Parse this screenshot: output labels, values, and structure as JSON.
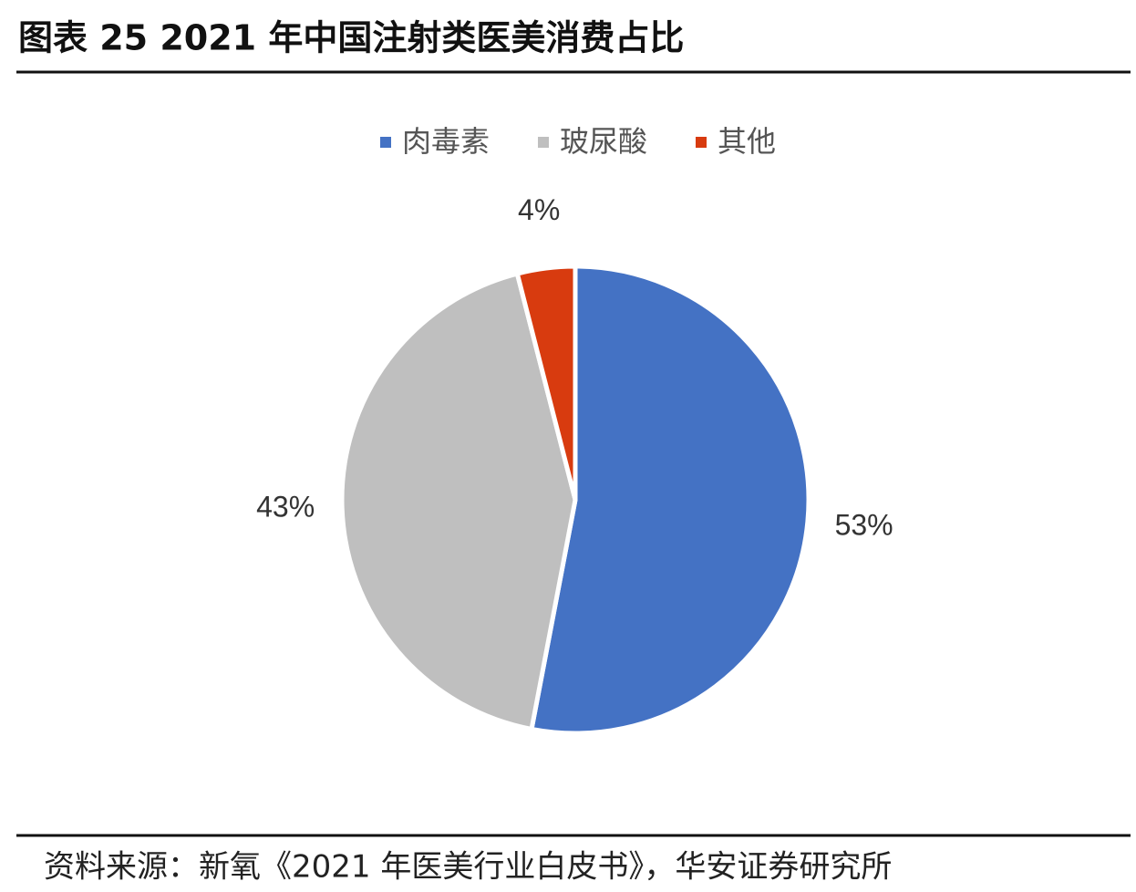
{
  "chart_data": {
    "type": "pie",
    "title": "图表 25 2021 年中国注射类医美消费占比",
    "categories": [
      "肉毒素",
      "玻尿酸",
      "其他"
    ],
    "values": [
      53,
      43,
      4
    ],
    "value_labels": [
      "53%",
      "43%",
      "4%"
    ],
    "colors": [
      "#4472c4",
      "#bfbfbf",
      "#d83b0f"
    ],
    "legend": "top"
  },
  "source": "资料来源：新氧《2021 年医美行业白皮书》，华安证券研究所"
}
